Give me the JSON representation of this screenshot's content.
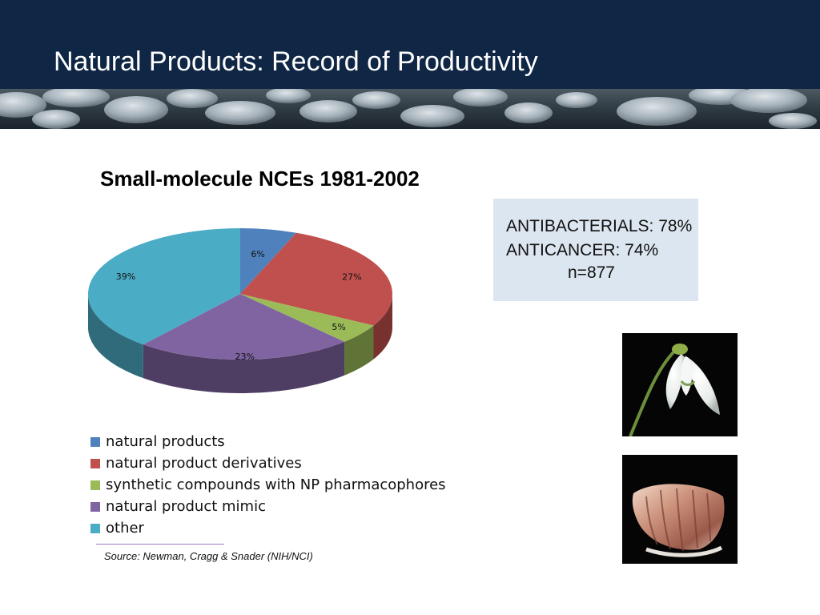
{
  "slide": {
    "title": "Natural Products: Record of Productivity"
  },
  "colors": {
    "header_bg": "#0f2645",
    "natural_products": "#4f81bd",
    "natural_product_derivatives": "#c0504d",
    "synthetic_np_pharmacophores": "#9bbb59",
    "natural_product_mimic": "#8064a2",
    "other": "#4bacc6",
    "stats_box_bg": "#dce6f0"
  },
  "chart_data": {
    "type": "pie",
    "title": "Small-molecule NCEs 1981-2002",
    "categories": [
      "natural products",
      "natural product derivatives",
      "synthetic compounds with NP pharmacophores",
      "natural product mimic",
      "other"
    ],
    "values": [
      6,
      27,
      5,
      23,
      39
    ],
    "data_labels": [
      "6%",
      "27%",
      "5%",
      "23%",
      "39%"
    ],
    "colors": [
      "#4f81bd",
      "#c0504d",
      "#9bbb59",
      "#8064a2",
      "#4bacc6"
    ],
    "style": "3d",
    "legend_position": "bottom-left"
  },
  "stats": {
    "antibacterials": "ANTIBACTERIALS: 78%",
    "anticancer": "ANTICANCER: 74%",
    "n": "n=877"
  },
  "source": "Source: Newman, Cragg & Snader (NIH/NCI)",
  "images": {
    "top": "snowdrop-flower-photo",
    "bottom": "cone-snail-shell-photo"
  }
}
